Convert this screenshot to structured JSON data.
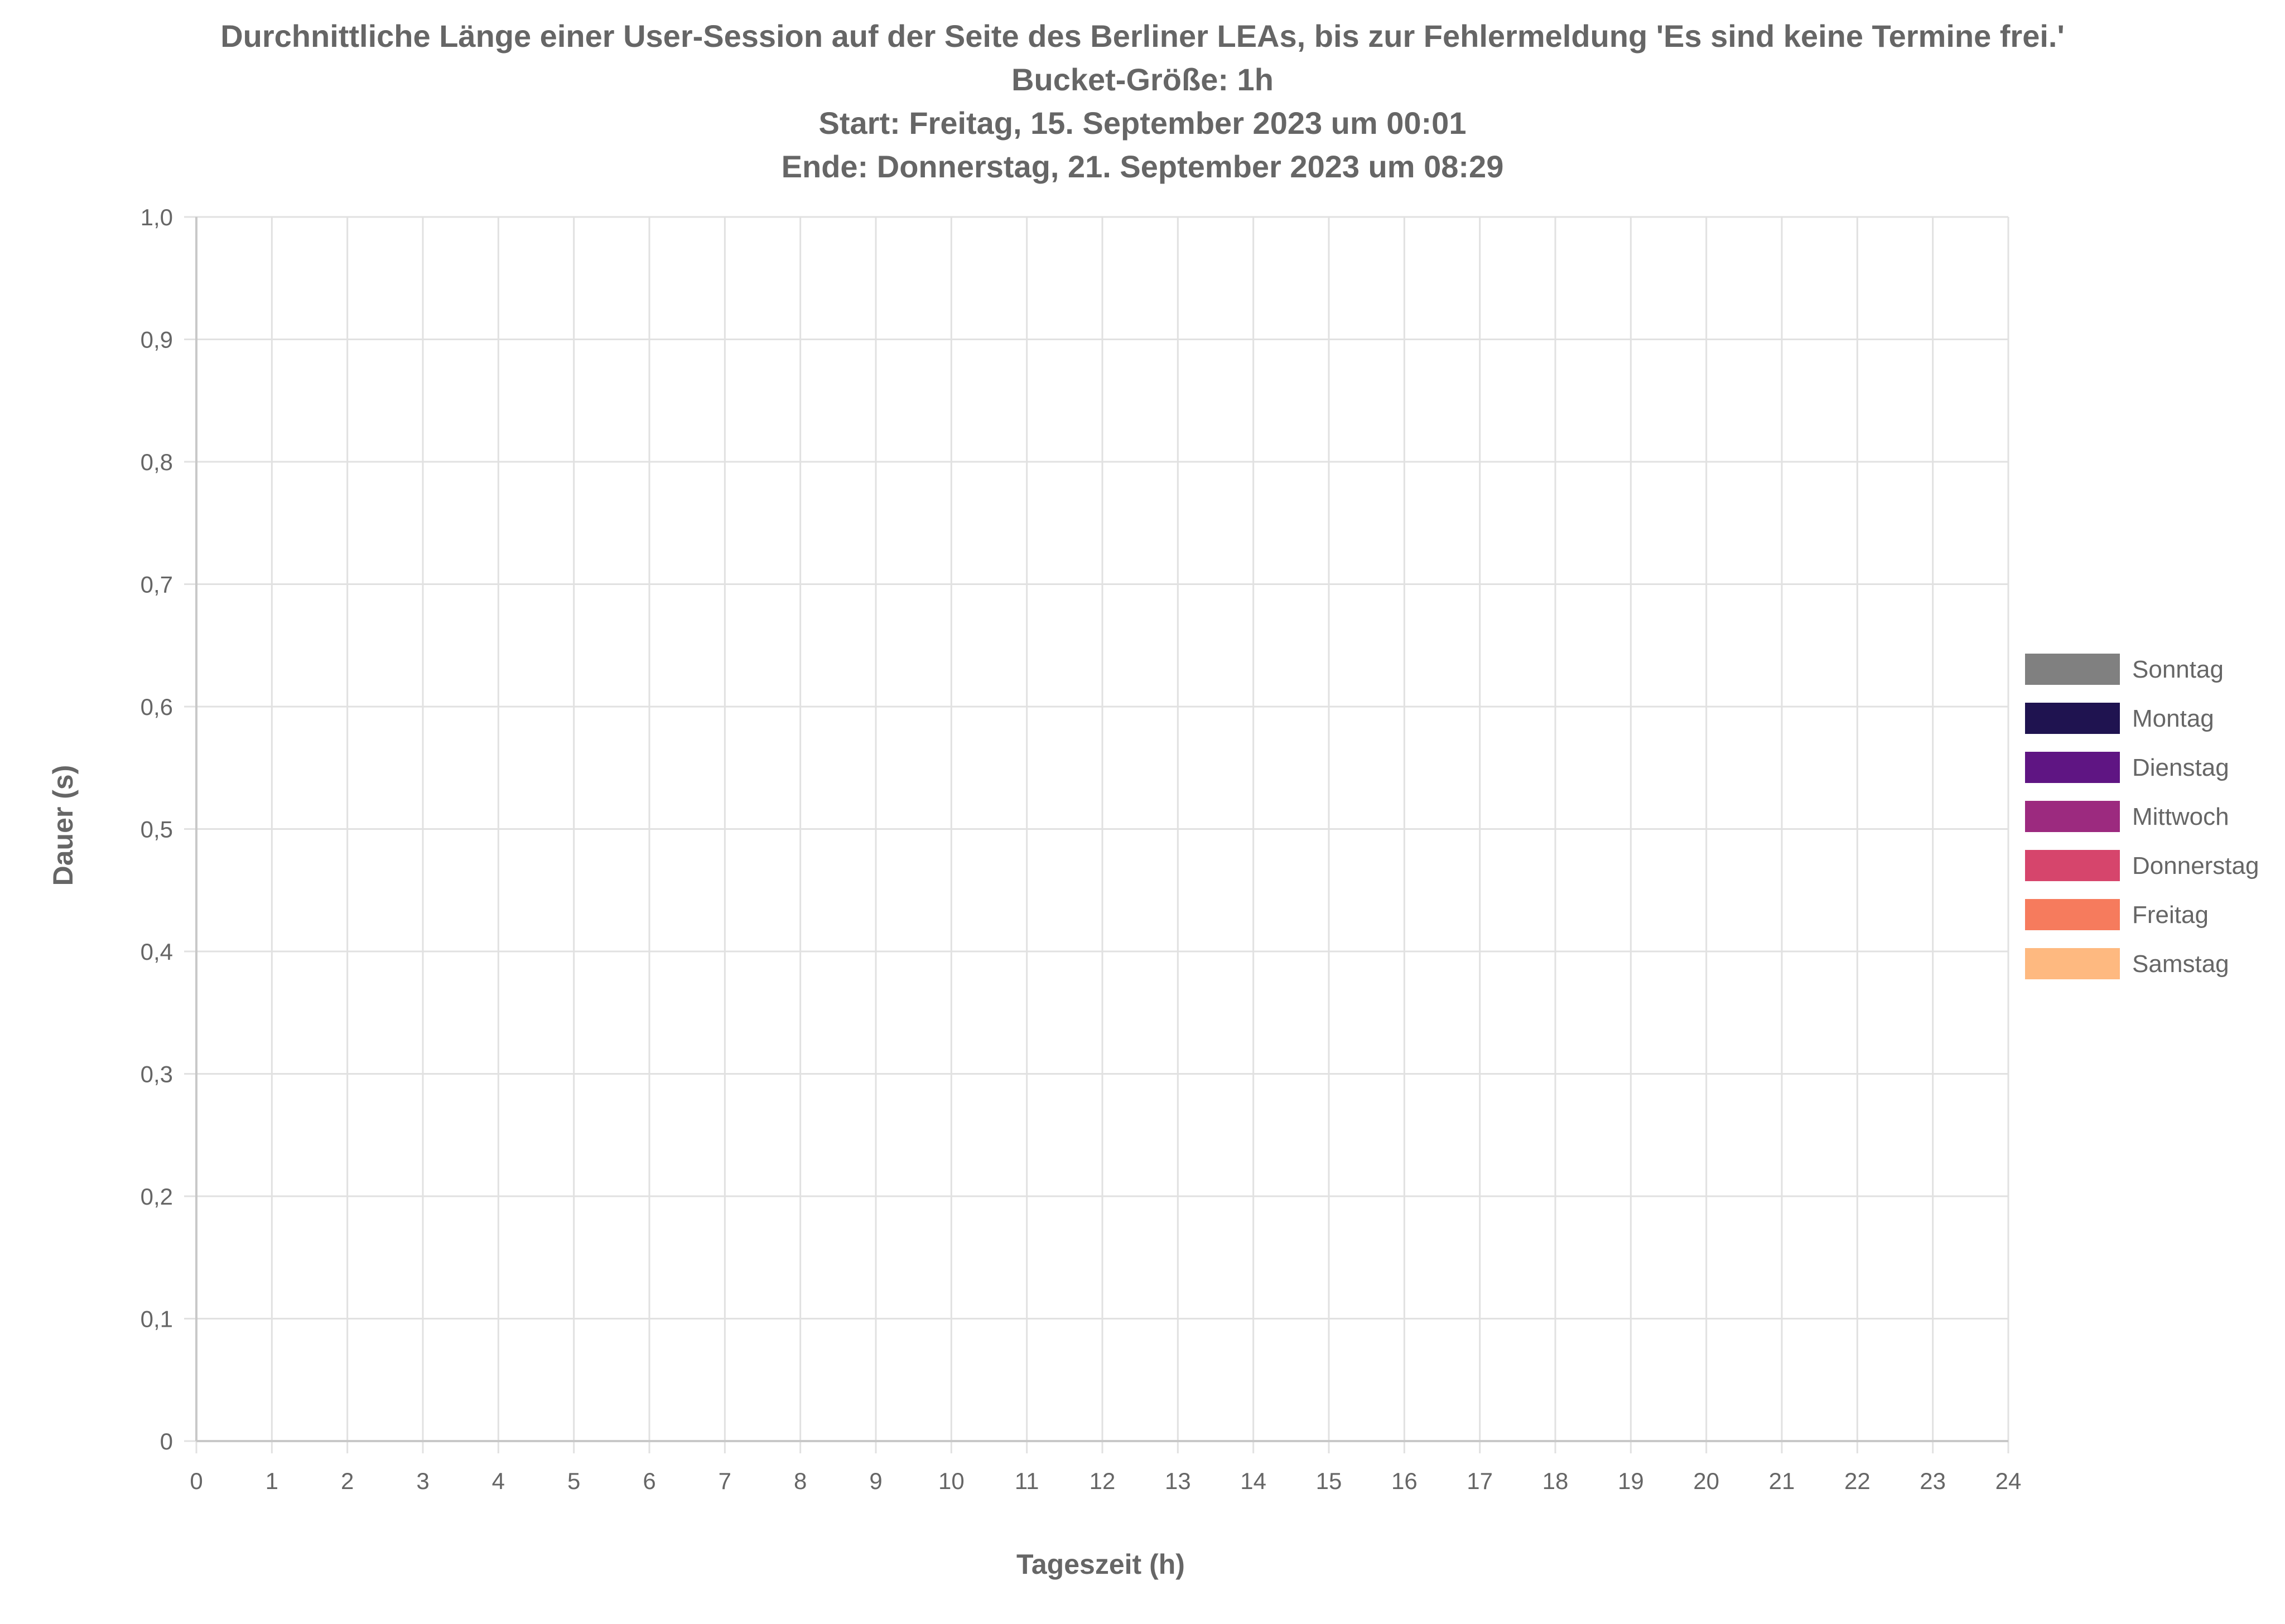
{
  "chart_data": {
    "type": "bar",
    "title": [
      "Durchnittliche Länge einer User-Session auf der Seite des Berliner LEAs, bis zur Fehlermeldung 'Es sind keine Termine frei.'",
      "Bucket-Größe: 1h",
      "Start: Freitag, 15. September 2023 um 00:01",
      "Ende: Donnerstag, 21. September 2023 um 08:29"
    ],
    "xlabel": "Tageszeit (h)",
    "ylabel": "Dauer (s)",
    "xlim": [
      0,
      24
    ],
    "ylim": [
      0,
      1
    ],
    "x_ticks": [
      "0",
      "1",
      "2",
      "3",
      "4",
      "5",
      "6",
      "7",
      "8",
      "9",
      "10",
      "11",
      "12",
      "13",
      "14",
      "15",
      "16",
      "17",
      "18",
      "19",
      "20",
      "21",
      "22",
      "23",
      "24"
    ],
    "y_ticks": [
      "0",
      "0,1",
      "0,2",
      "0,3",
      "0,4",
      "0,5",
      "0,6",
      "0,7",
      "0,8",
      "0,9",
      "1,0"
    ],
    "grid": true,
    "legend_position": "right",
    "series": [
      {
        "name": "Sonntag",
        "color": "#808080",
        "values": []
      },
      {
        "name": "Montag",
        "color": "#1f1350",
        "values": []
      },
      {
        "name": "Dienstag",
        "color": "#5f1583",
        "values": []
      },
      {
        "name": "Mittwoch",
        "color": "#9c2a7f",
        "values": []
      },
      {
        "name": "Donnerstag",
        "color": "#d6456c",
        "values": []
      },
      {
        "name": "Freitag",
        "color": "#f67b5d",
        "values": []
      },
      {
        "name": "Samstag",
        "color": "#feb980",
        "values": []
      }
    ]
  }
}
